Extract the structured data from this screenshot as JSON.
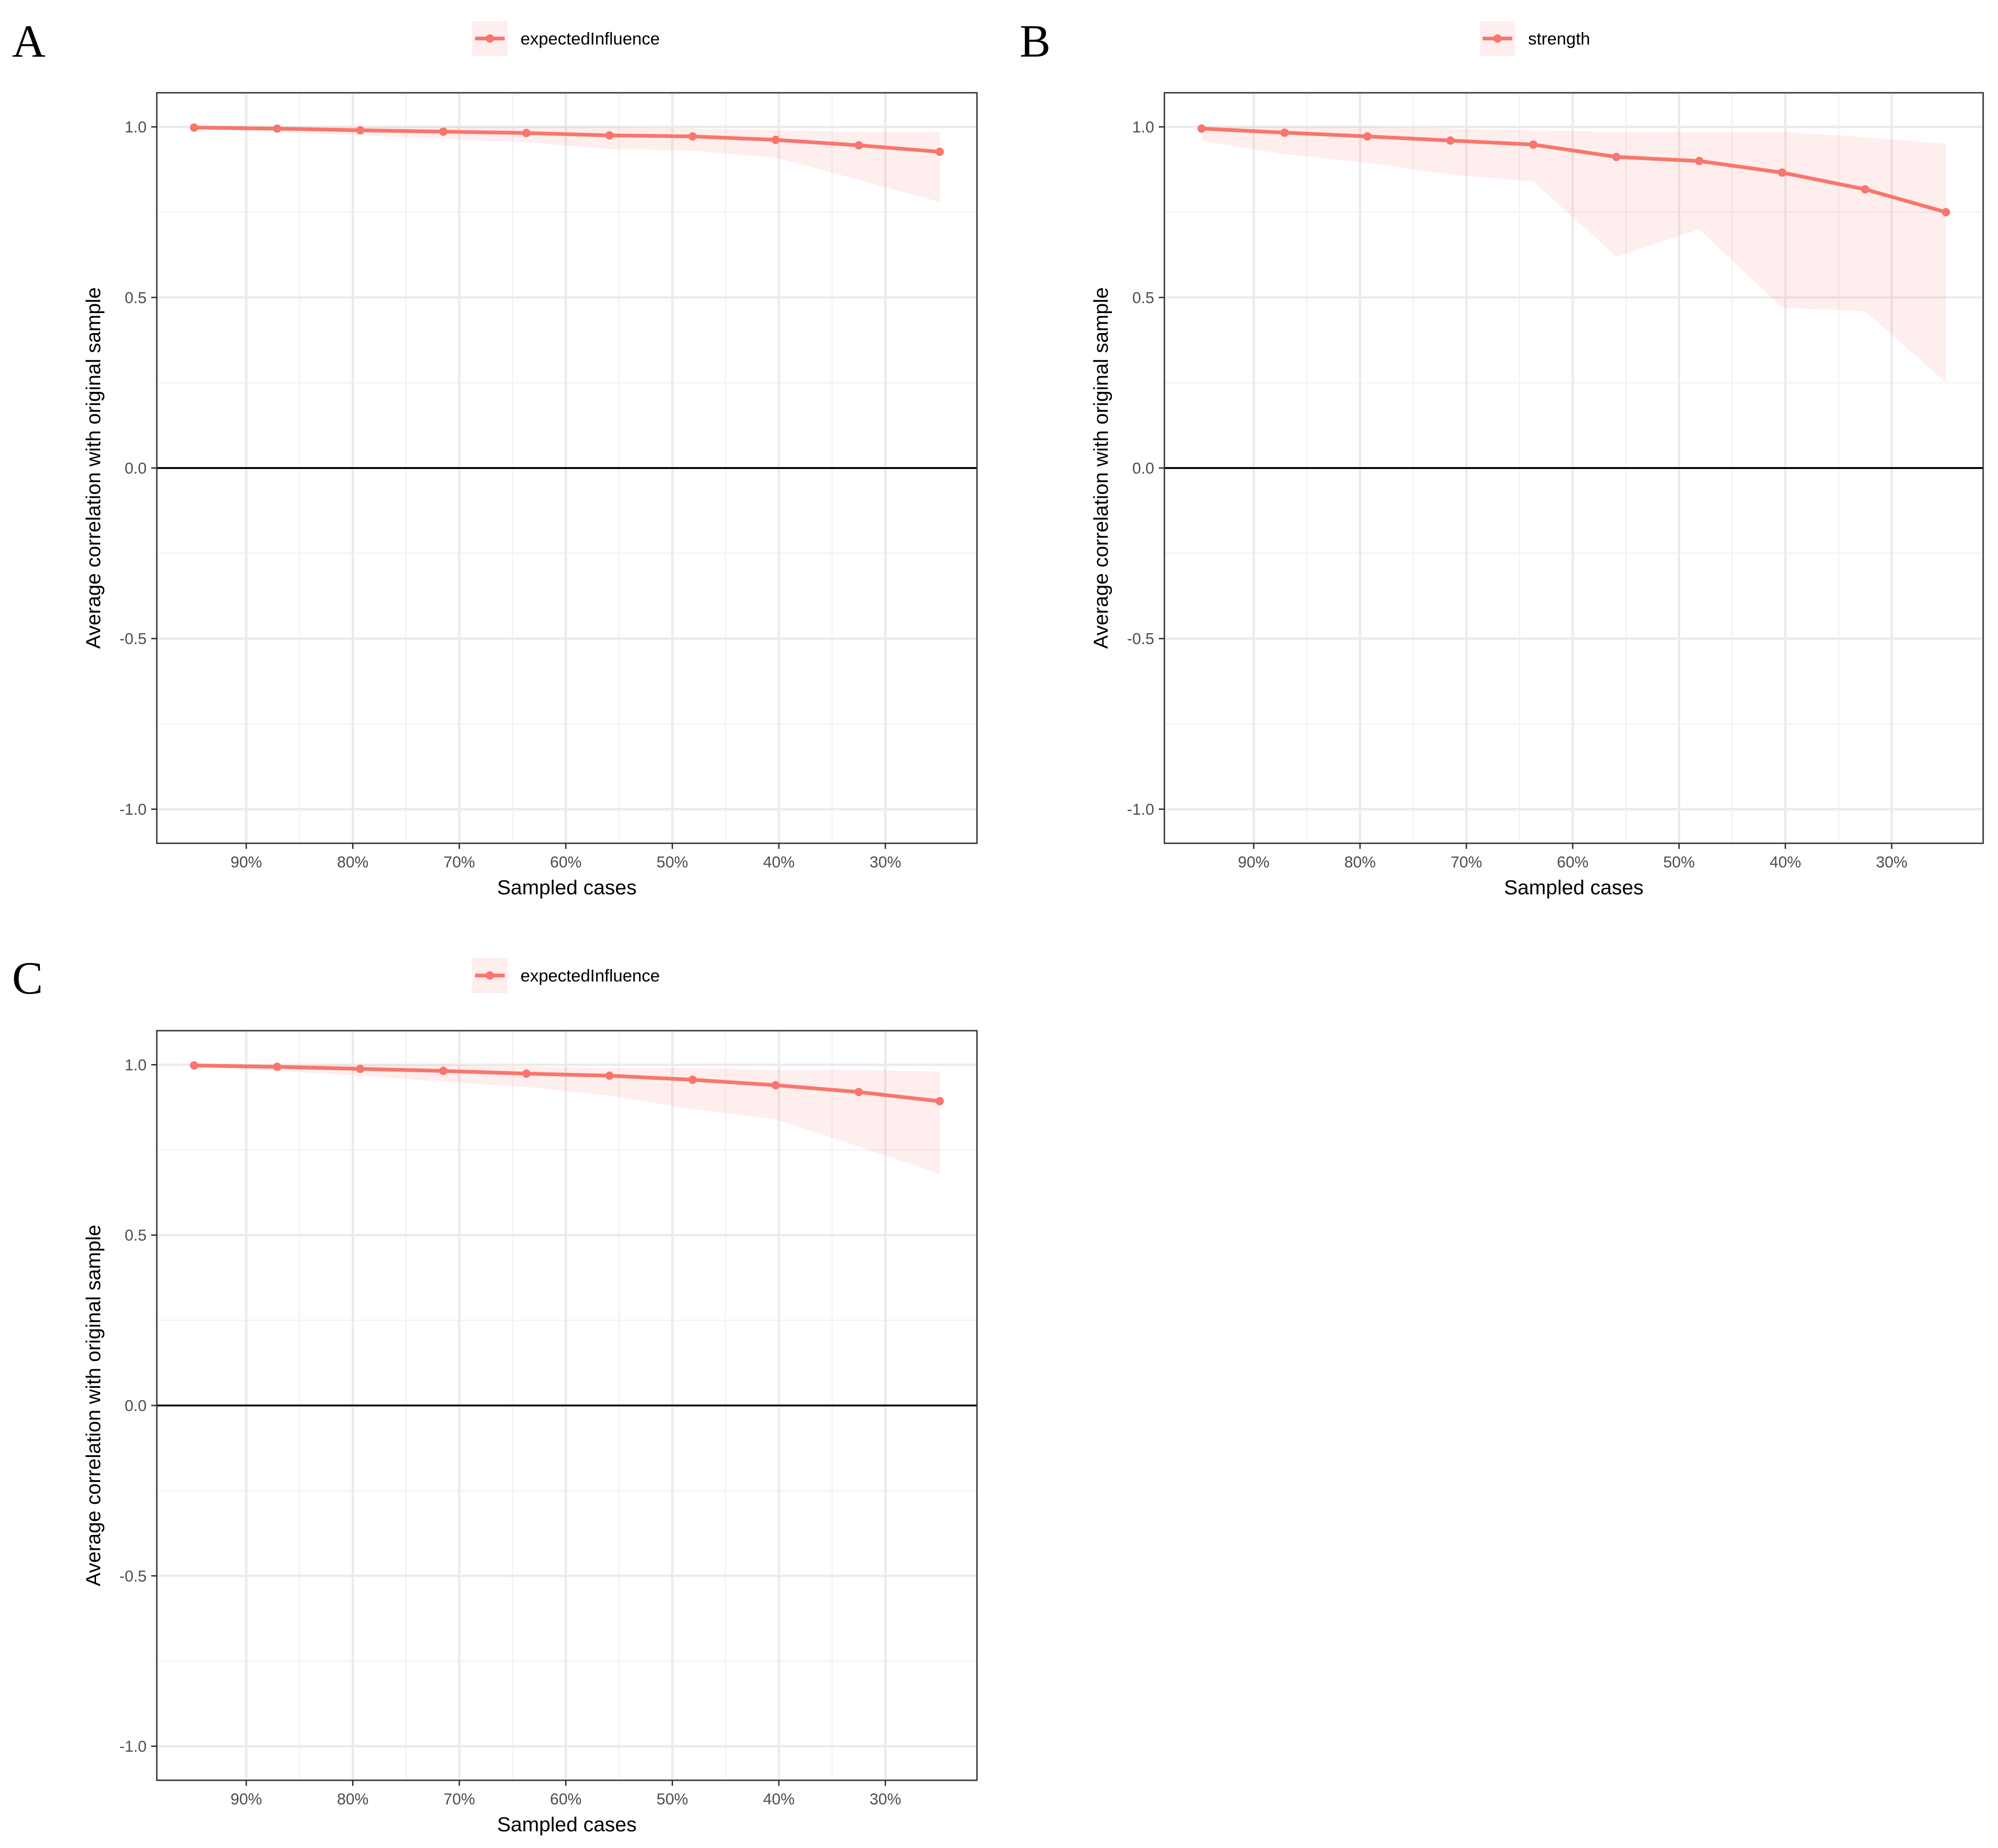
{
  "figure_title": "",
  "colors": {
    "series": "#f8766d",
    "ribbon": "#f8766d",
    "grid_major": "#ebebeb",
    "grid_minor": "#f3f3f3",
    "frame": "#333333",
    "zero_line": "#000000"
  },
  "chart_data": [
    {
      "panel": "A",
      "type": "line",
      "legend": "expectedInfluence",
      "title": "",
      "xlabel": "Sampled cases",
      "ylabel": "Average correlation with original sample",
      "xlim": [
        0.984,
        0.214
      ],
      "ylim": [
        -1.1,
        1.1
      ],
      "x_ticks": [
        0.9,
        0.8,
        0.7,
        0.6,
        0.5,
        0.4,
        0.3
      ],
      "x_tick_labels": [
        "90%",
        "80%",
        "70%",
        "60%",
        "50%",
        "40%",
        "30%"
      ],
      "y_ticks": [
        1.0,
        0.5,
        0.0,
        -0.5,
        -1.0
      ],
      "y_tick_labels": [
        "1.0",
        "0.5",
        "0.0",
        "-0.5",
        "-1.0"
      ],
      "hline": 0,
      "series": [
        {
          "name": "expectedInfluence",
          "x": [
            0.949,
            0.871,
            0.793,
            0.715,
            0.637,
            0.559,
            0.481,
            0.403,
            0.325,
            0.249
          ],
          "y": [
            0.998,
            0.995,
            0.99,
            0.986,
            0.982,
            0.975,
            0.972,
            0.962,
            0.946,
            0.927
          ],
          "lower": [
            0.993,
            0.985,
            0.975,
            0.965,
            0.955,
            0.935,
            0.93,
            0.91,
            0.845,
            0.78
          ],
          "upper": [
            1.0,
            1.0,
            1.0,
            1.0,
            1.0,
            1.0,
            0.995,
            0.99,
            0.985,
            0.985
          ]
        }
      ]
    },
    {
      "panel": "B",
      "type": "line",
      "legend": "strength",
      "title": "",
      "xlabel": "Sampled cases",
      "ylabel": "Average correlation with original sample",
      "xlim": [
        0.984,
        0.214
      ],
      "ylim": [
        -1.1,
        1.1
      ],
      "x_ticks": [
        0.9,
        0.8,
        0.7,
        0.6,
        0.5,
        0.4,
        0.3
      ],
      "x_tick_labels": [
        "90%",
        "80%",
        "70%",
        "60%",
        "50%",
        "40%",
        "30%"
      ],
      "y_ticks": [
        1.0,
        0.5,
        0.0,
        -0.5,
        -1.0
      ],
      "y_tick_labels": [
        "1.0",
        "0.5",
        "0.0",
        "-0.5",
        "-1.0"
      ],
      "hline": 0,
      "series": [
        {
          "name": "strength",
          "x": [
            0.949,
            0.871,
            0.793,
            0.715,
            0.637,
            0.559,
            0.481,
            0.403,
            0.325,
            0.249
          ],
          "y": [
            0.995,
            0.983,
            0.972,
            0.96,
            0.948,
            0.912,
            0.9,
            0.866,
            0.817,
            0.75
          ],
          "lower": [
            0.96,
            0.92,
            0.895,
            0.86,
            0.84,
            0.62,
            0.7,
            0.47,
            0.46,
            0.25
          ],
          "upper": [
            1.0,
            1.0,
            1.0,
            0.995,
            0.99,
            0.985,
            0.985,
            0.985,
            0.97,
            0.95
          ]
        }
      ]
    },
    {
      "panel": "C",
      "type": "line",
      "legend": "expectedInfluence",
      "title": "",
      "xlabel": "Sampled cases",
      "ylabel": "Average correlation with original sample",
      "xlim": [
        0.984,
        0.214
      ],
      "ylim": [
        -1.1,
        1.1
      ],
      "x_ticks": [
        0.9,
        0.8,
        0.7,
        0.6,
        0.5,
        0.4,
        0.3
      ],
      "x_tick_labels": [
        "90%",
        "80%",
        "70%",
        "60%",
        "50%",
        "40%",
        "30%"
      ],
      "y_ticks": [
        1.0,
        0.5,
        0.0,
        -0.5,
        -1.0
      ],
      "y_tick_labels": [
        "1.0",
        "0.5",
        "0.0",
        "-0.5",
        "-1.0"
      ],
      "hline": 0,
      "series": [
        {
          "name": "expectedInfluence",
          "x": [
            0.949,
            0.871,
            0.793,
            0.715,
            0.637,
            0.559,
            0.481,
            0.403,
            0.325,
            0.249
          ],
          "y": [
            0.998,
            0.994,
            0.988,
            0.982,
            0.974,
            0.968,
            0.956,
            0.94,
            0.92,
            0.893
          ],
          "lower": [
            0.992,
            0.982,
            0.968,
            0.95,
            0.935,
            0.91,
            0.87,
            0.84,
            0.76,
            0.68
          ],
          "upper": [
            1.0,
            1.0,
            1.0,
            1.0,
            0.995,
            0.99,
            0.99,
            0.985,
            0.985,
            0.98
          ]
        }
      ]
    }
  ]
}
